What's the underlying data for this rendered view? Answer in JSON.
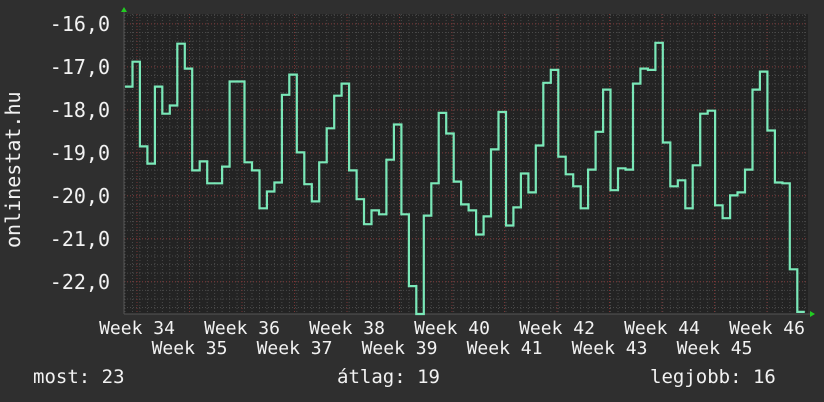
{
  "chart_data": {
    "type": "line",
    "step": true,
    "ylabel": "onlinestat.hu",
    "ylim": [
      -22.75,
      -15.77
    ],
    "y_ticks": [
      -16,
      -17,
      -18,
      -19,
      -20,
      -21,
      -22
    ],
    "y_tick_labels": [
      "-16,0",
      "-17,0",
      "-18,0",
      "-19,0",
      "-20,0",
      "-21,0",
      "-22,0"
    ],
    "x_tick_labels": [
      "Week 34",
      "Week 35",
      "Week 36",
      "Week 37",
      "Week 38",
      "Week 39",
      "Week 40",
      "Week 41",
      "Week 42",
      "Week 43",
      "Week 44",
      "Week 45",
      "Week 46"
    ],
    "x_unit": "day",
    "grid": true,
    "colors": {
      "line": "#7ae8b8",
      "background": "#2f2f2f",
      "plot": "#232323",
      "major_grid": "#7a3434",
      "minor_grid": "#4a4a4a",
      "arrow": "#22cc22"
    },
    "values": [
      -17.46,
      -16.88,
      -18.85,
      -19.25,
      -17.46,
      -18.09,
      -17.9,
      -16.46,
      -17.04,
      -19.41,
      -19.2,
      -19.71,
      -19.71,
      -19.32,
      -17.34,
      -17.34,
      -19.22,
      -19.41,
      -20.29,
      -19.9,
      -19.69,
      -17.65,
      -17.18,
      -18.99,
      -19.73,
      -20.13,
      -19.22,
      -18.43,
      -17.67,
      -17.39,
      -19.41,
      -20.08,
      -20.66,
      -20.34,
      -20.43,
      -19.16,
      -18.34,
      -20.43,
      -22.1,
      -22.9,
      -20.46,
      -19.71,
      -18.07,
      -18.55,
      -19.67,
      -20.2,
      -20.34,
      -20.9,
      -20.48,
      -18.92,
      -18.05,
      -20.69,
      -20.27,
      -19.48,
      -19.92,
      -18.83,
      -17.37,
      -17.07,
      -19.09,
      -19.5,
      -19.78,
      -20.29,
      -19.39,
      -18.51,
      -17.53,
      -19.87,
      -19.36,
      -19.39,
      -17.39,
      -17.04,
      -17.07,
      -16.44,
      -18.76,
      -19.78,
      -19.64,
      -20.29,
      -19.29,
      -18.09,
      -18.02,
      -20.22,
      -20.52,
      -19.99,
      -19.92,
      -19.39,
      -17.53,
      -17.11,
      -18.48,
      -19.69,
      -19.71,
      -21.71,
      -22.7
    ]
  },
  "footer": {
    "current": "most: 23",
    "average": "átlag: 19",
    "best": "legjobb: 16"
  }
}
